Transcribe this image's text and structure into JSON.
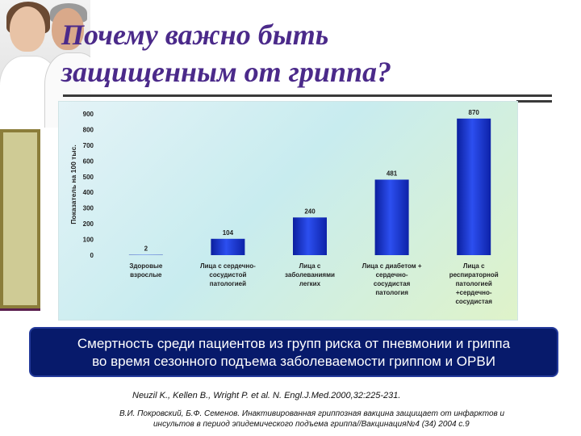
{
  "slide": {
    "title_line1": "Почему важно быть",
    "title_line2": "защищенным от гриппа?",
    "caption_line1": "Смертность среди пациентов из групп риска от пневмонии и гриппа",
    "caption_line2": "во время сезонного подъема заболеваемости гриппом и ОРВИ",
    "references": [
      "Neuzil K., Kellen B., Wright P. et al. N. Engl.J.Med.2000,32:225-231.",
      "В.И. Покровский, Б.Ф. Семенов. Инактивированная гриппозная вакцина защищает от инфарктов и",
      "инсультов в период эпидемического подъема гриппа//Вакцинация№4 (34) 2004 с.9"
    ]
  },
  "colors": {
    "title": "#4b2a8a",
    "bar": "#1f3fd6",
    "caption_bg": "#071a6b"
  },
  "chart_data": {
    "type": "bar",
    "ylabel": "Показатель на 100 тыс.",
    "ylim": [
      0,
      900
    ],
    "yticks": [
      "0",
      "100",
      "200",
      "300",
      "400",
      "500",
      "600",
      "700",
      "800",
      "900"
    ],
    "categories": [
      [
        "Здоровые",
        "взрослые"
      ],
      [
        "Лица с сердечно-",
        "сосудистой",
        "патологией"
      ],
      [
        "Лица с",
        "заболеваниями",
        "легких"
      ],
      [
        "Лица с диабетом +",
        "сердечно-",
        "сосудистая",
        "патология"
      ],
      [
        "Лица с",
        "респираторной",
        "патологией",
        "+сердечно-",
        "сосудистая"
      ]
    ],
    "values": [
      2,
      104,
      240,
      481,
      870
    ],
    "data_labels": [
      "2",
      "104",
      "240",
      "481",
      "870"
    ],
    "grid": false,
    "legend": "none"
  }
}
